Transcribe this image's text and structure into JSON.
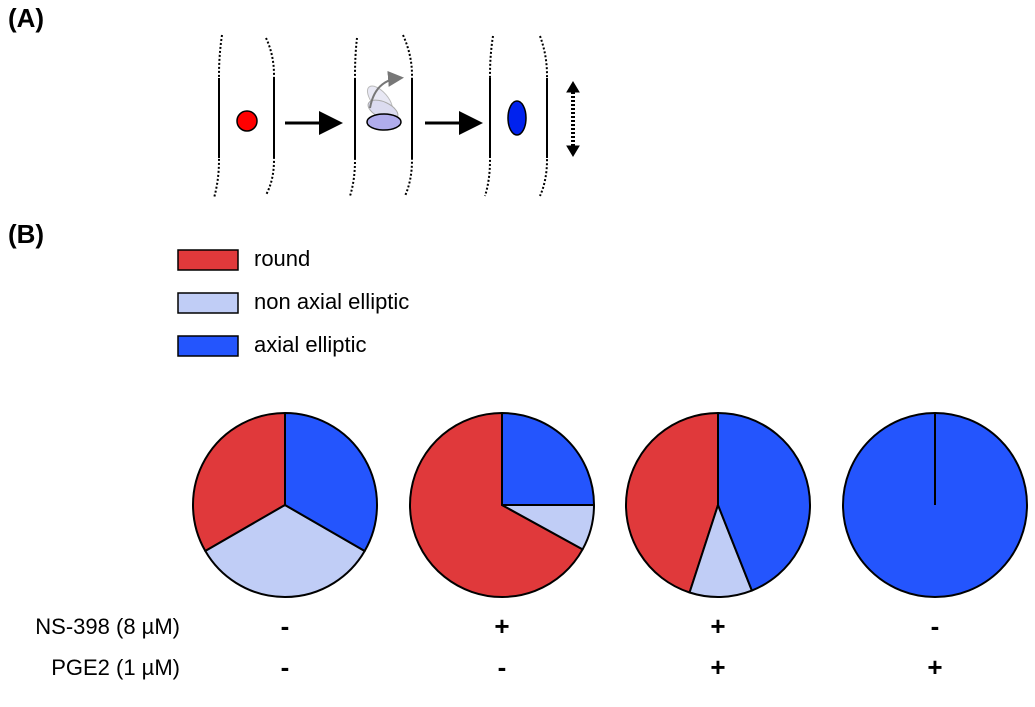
{
  "panel_a": {
    "label": "(A)"
  },
  "panel_b": {
    "label": "(B)"
  },
  "chart_data": {
    "type": "pie",
    "categories": [
      "round",
      "non axial elliptic",
      "axial elliptic"
    ],
    "colors": [
      "#e0393b",
      "#c0cdf6",
      "#2455fd"
    ],
    "series": [
      {
        "values": [
          33.3,
          33.3,
          33.3
        ]
      },
      {
        "values": [
          67,
          8,
          25
        ]
      },
      {
        "values": [
          45,
          11,
          44
        ]
      },
      {
        "values": [
          0,
          0,
          100
        ]
      }
    ]
  },
  "treatments": {
    "rows": [
      {
        "label": "NS-398 (8 µM)",
        "values": [
          "-",
          "+",
          "+",
          "-"
        ]
      },
      {
        "label": "PGE2 (1 µM)",
        "values": [
          "-",
          "-",
          "+",
          "+"
        ]
      }
    ]
  }
}
